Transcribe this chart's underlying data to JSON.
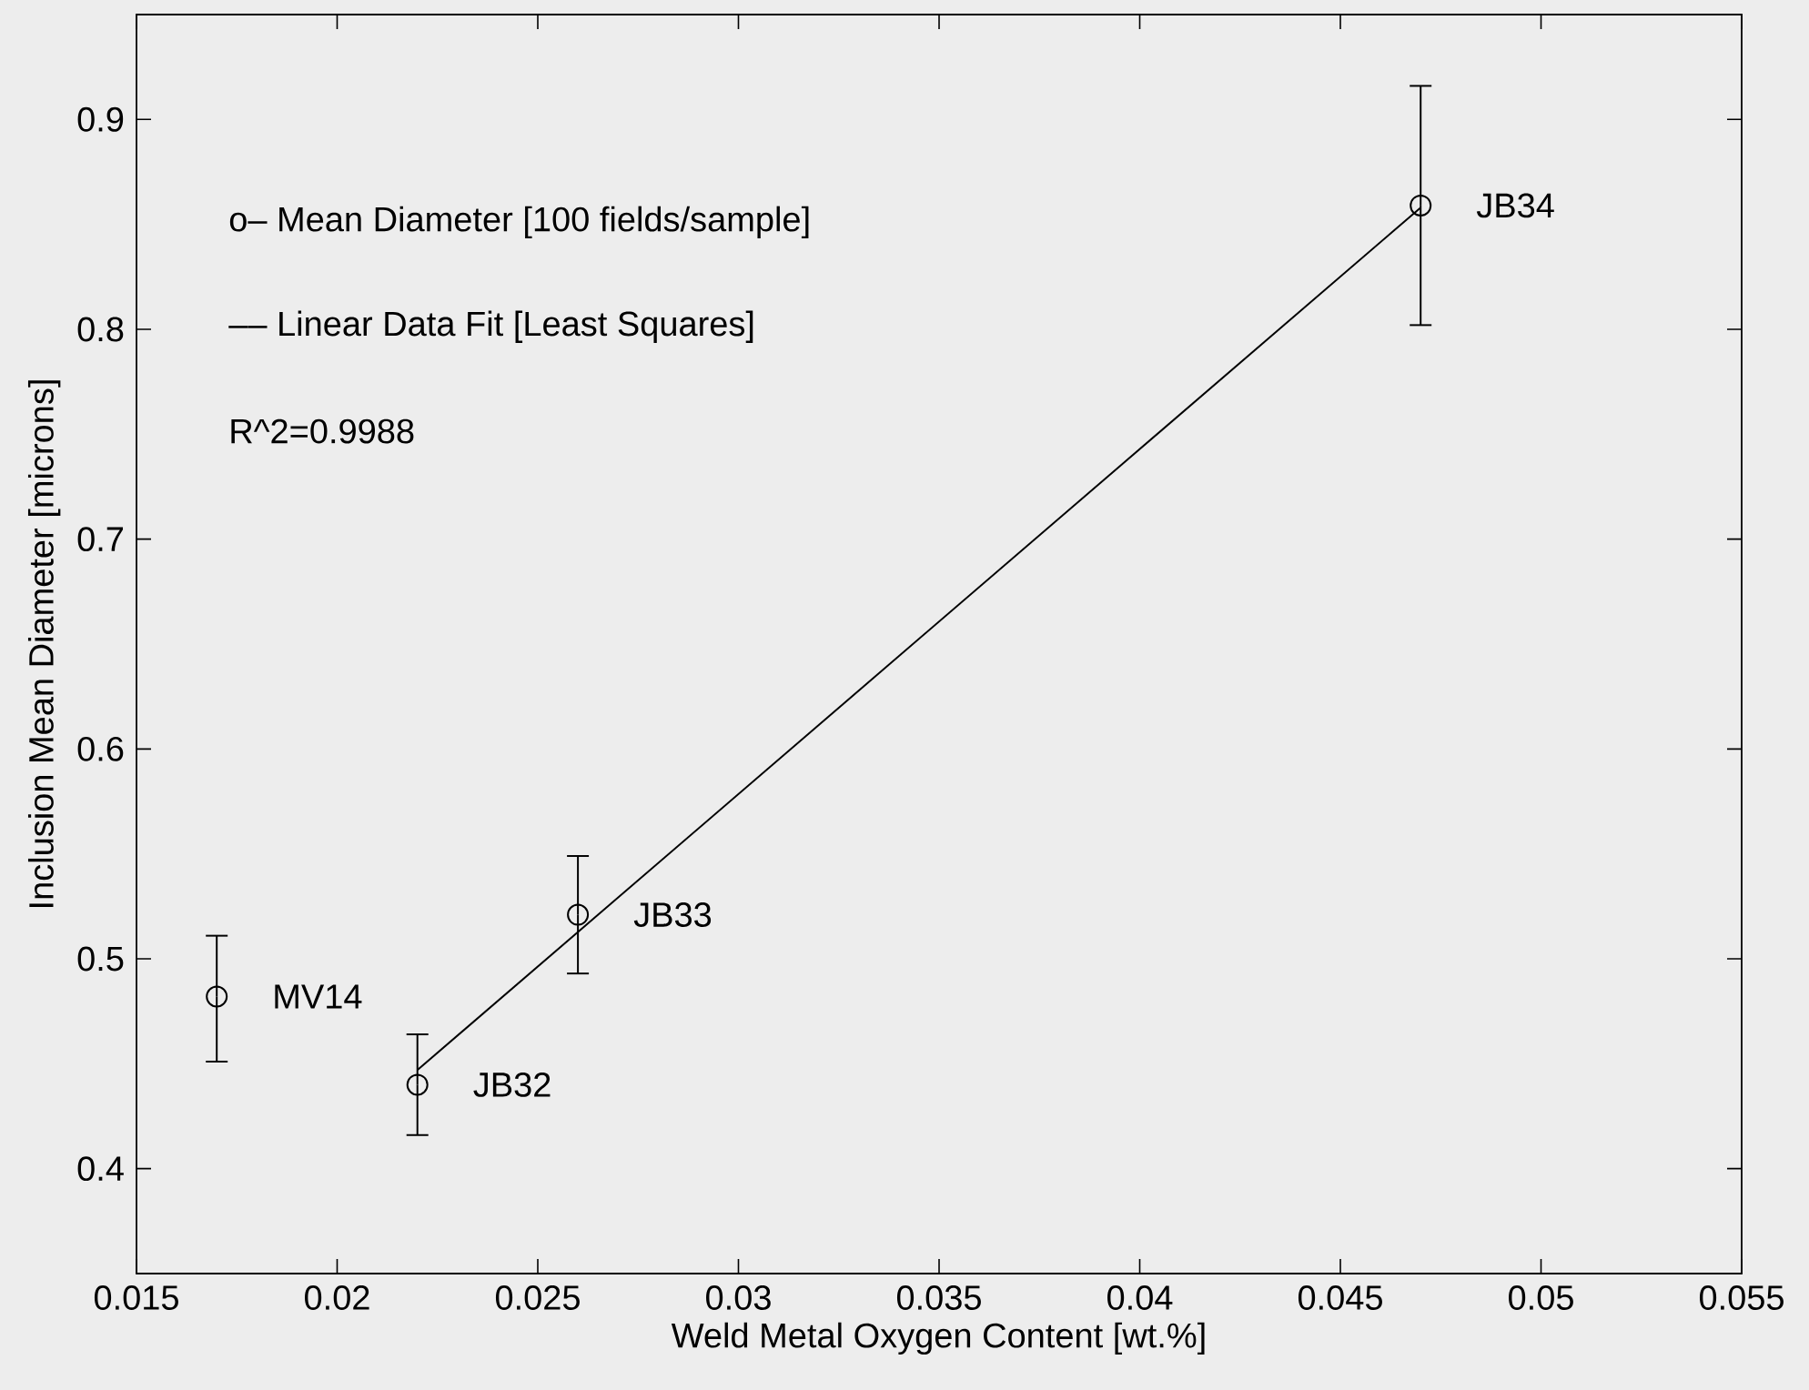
{
  "chart_data": {
    "type": "scatter",
    "xlabel": "Weld Metal Oxygen Content [wt.%]",
    "ylabel": "Inclusion Mean Diameter [microns]",
    "xlim": [
      0.015,
      0.055
    ],
    "ylim": [
      0.35,
      0.95
    ],
    "xticks": [
      0.015,
      0.02,
      0.025,
      0.03,
      0.035,
      0.04,
      0.045,
      0.05,
      0.055
    ],
    "yticks": [
      0.4,
      0.5,
      0.6,
      0.7,
      0.8,
      0.9
    ],
    "marker": "circle",
    "series": [
      {
        "color": "#000000",
        "x": [
          0.017,
          0.022,
          0.026,
          0.047
        ],
        "values": [
          0.482,
          0.44,
          0.521,
          0.859
        ],
        "errors": [
          [
            0.451,
            0.511
          ],
          [
            0.416,
            0.464
          ],
          [
            0.493,
            0.549
          ],
          [
            0.802,
            0.916
          ]
        ]
      },
      {
        "type": "line",
        "color": "#000000",
        "marker": "none",
        "x": [
          0.022,
          0.047
        ],
        "values": [
          0.447,
          0.858
        ]
      }
    ],
    "annotations": [
      "o– Mean Diameter [100 fields/sample]",
      "–– Linear Data Fit [Least Squares]",
      "R^2=0.9988",
      {
        "text": "MV14",
        "x": 0.017,
        "y": 0.482
      },
      {
        "text": "JB32",
        "x": 0.022,
        "y": 0.44
      },
      {
        "text": "JB33",
        "x": 0.026,
        "y": 0.521
      },
      {
        "text": "JB34",
        "x": 0.047,
        "y": 0.859
      }
    ]
  }
}
